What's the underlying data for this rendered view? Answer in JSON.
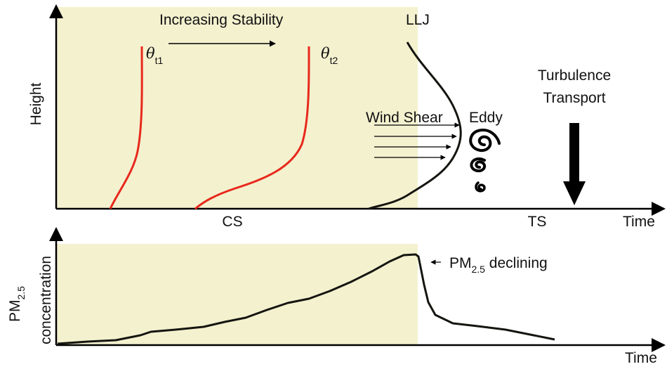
{
  "colors": {
    "stable_region_fill": "#f4f1cf",
    "theta_profile": "#e8291c",
    "profile_line": "#151510",
    "axis": "#000000",
    "text": "#111111"
  },
  "top_panel": {
    "y_axis_label": "Height",
    "x_axis_label": "Time",
    "stability_label": "Increasing Stability",
    "theta_t1": {
      "symbol": "θ",
      "subscript": "t1"
    },
    "theta_t2": {
      "symbol": "θ",
      "subscript": "t2"
    },
    "llj_label": "LLJ",
    "wind_shear_label": "Wind Shear",
    "eddy_label": "Eddy",
    "turbulence_label_line1": "Turbulence",
    "turbulence_label_line2": "Transport",
    "cs_label": "CS",
    "ts_label": "TS"
  },
  "bottom_panel": {
    "y_axis_label_main": "PM",
    "y_axis_label_sub": "2.5",
    "y_axis_label_line2": "concentration",
    "x_axis_label": "Time",
    "annotation_main": "PM",
    "annotation_sub": "2.5",
    "annotation_rest": " declining"
  }
}
